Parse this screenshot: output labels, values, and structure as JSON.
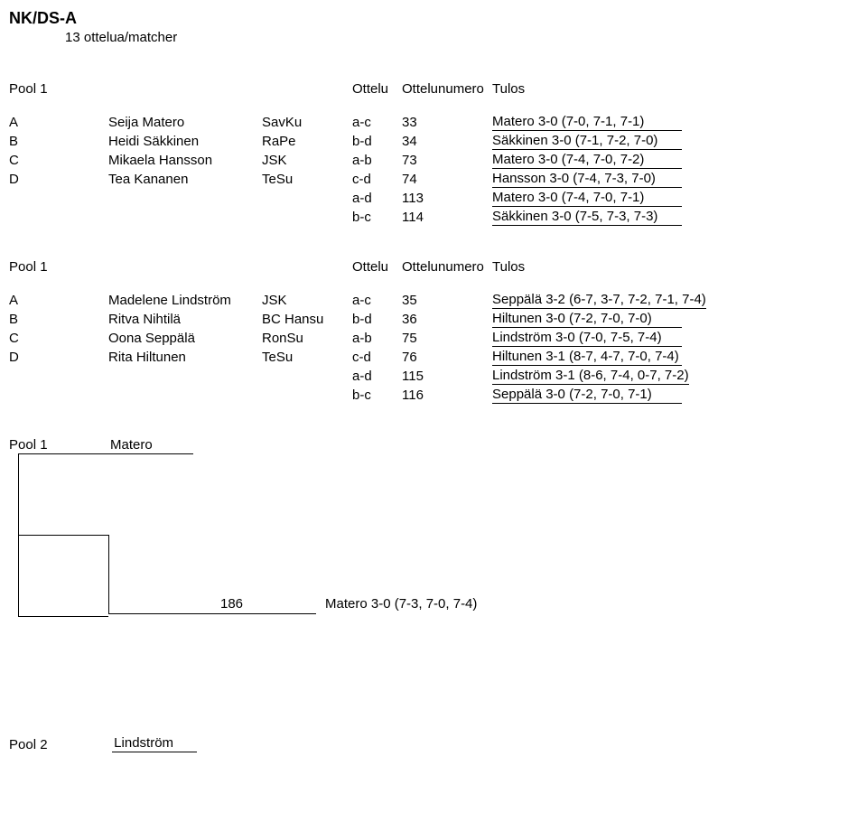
{
  "title": "NK/DS-A",
  "subtitle": "13 ottelua/matcher",
  "header": {
    "pool": "Pool 1",
    "ottelu": "Ottelu",
    "ottelunumero": "Ottelunumero",
    "tulos": "Tulos"
  },
  "pool_a": {
    "rows": [
      {
        "letter": "A",
        "player": "Seija Matero",
        "team": "SavKu",
        "ottelu": "a-c",
        "num": "33",
        "tulos": "Matero 3-0 (7-0, 7-1, 7-1)"
      },
      {
        "letter": "B",
        "player": "Heidi Säkkinen",
        "team": "RaPe",
        "ottelu": "b-d",
        "num": "34",
        "tulos": "Säkkinen 3-0 (7-1, 7-2, 7-0)"
      },
      {
        "letter": "C",
        "player": "Mikaela Hansson",
        "team": "JSK",
        "ottelu": "a-b",
        "num": "73",
        "tulos": "Matero 3-0 (7-4, 7-0, 7-2)"
      },
      {
        "letter": "D",
        "player": "Tea Kananen",
        "team": "TeSu",
        "ottelu": "c-d",
        "num": "74",
        "tulos": "Hansson 3-0 (7-4, 7-3, 7-0)"
      },
      {
        "letter": "",
        "player": "",
        "team": "",
        "ottelu": "a-d",
        "num": "113",
        "tulos": "Matero 3-0 (7-4, 7-0, 7-1)"
      },
      {
        "letter": "",
        "player": "",
        "team": "",
        "ottelu": "b-c",
        "num": "114",
        "tulos": "Säkkinen 3-0 (7-5, 7-3, 7-3)"
      }
    ]
  },
  "pool_b": {
    "rows": [
      {
        "letter": "A",
        "player": "Madelene Lindström",
        "team": "JSK",
        "ottelu": "a-c",
        "num": "35",
        "tulos": "Seppälä 3-2 (6-7, 3-7, 7-2, 7-1, 7-4)"
      },
      {
        "letter": "B",
        "player": "Ritva Nihtilä",
        "team": "BC Hansu",
        "ottelu": "b-d",
        "num": "36",
        "tulos": "Hiltunen 3-0 (7-2, 7-0, 7-0)"
      },
      {
        "letter": "C",
        "player": "Oona Seppälä",
        "team": "RonSu",
        "ottelu": "a-b",
        "num": "75",
        "tulos": "Lindström 3-0 (7-0, 7-5, 7-4)"
      },
      {
        "letter": "D",
        "player": "Rita Hiltunen",
        "team": "TeSu",
        "ottelu": "c-d",
        "num": "76",
        "tulos": "Hiltunen 3-1 (8-7, 4-7, 7-0, 7-4)"
      },
      {
        "letter": "",
        "player": "",
        "team": "",
        "ottelu": "a-d",
        "num": "115",
        "tulos": "Lindström 3-1 (8-6, 7-4, 0-7, 7-2)"
      },
      {
        "letter": "",
        "player": "",
        "team": "",
        "ottelu": "b-c",
        "num": "116",
        "tulos": "Seppälä 3-0 (7-2, 7-0, 7-1)"
      }
    ]
  },
  "bracket": {
    "pool1_label": "Pool 1",
    "top_player": "Matero",
    "match_num": "186",
    "final_result": "Matero 3-0 (7-3, 7-0, 7-4)"
  },
  "pool2": {
    "label": "Pool 2",
    "player": "Lindström"
  }
}
